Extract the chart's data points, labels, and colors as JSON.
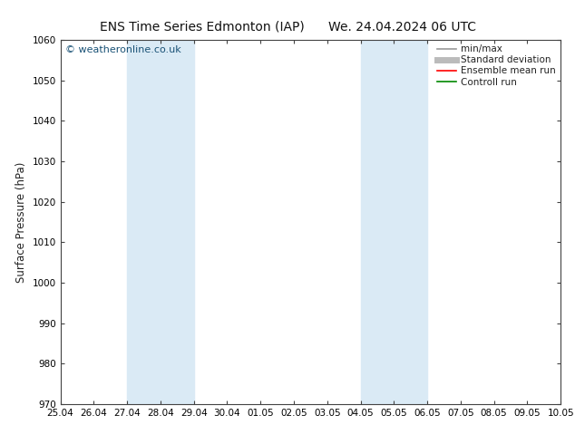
{
  "title_left": "ENS Time Series Edmonton (IAP)",
  "title_right": "We. 24.04.2024 06 UTC",
  "ylabel": "Surface Pressure (hPa)",
  "ylim": [
    970,
    1060
  ],
  "yticks": [
    970,
    980,
    990,
    1000,
    1010,
    1020,
    1030,
    1040,
    1050,
    1060
  ],
  "xtick_labels": [
    "25.04",
    "26.04",
    "27.04",
    "28.04",
    "29.04",
    "30.04",
    "01.05",
    "02.05",
    "03.05",
    "04.05",
    "05.05",
    "06.05",
    "07.05",
    "08.05",
    "09.05",
    "10.05"
  ],
  "xtick_positions": [
    0,
    1,
    2,
    3,
    4,
    5,
    6,
    7,
    8,
    9,
    10,
    11,
    12,
    13,
    14,
    15
  ],
  "shade_regions": [
    {
      "x_start": 2,
      "x_end": 4
    },
    {
      "x_start": 9,
      "x_end": 11
    }
  ],
  "shade_color": "#daeaf5",
  "watermark_text": "© weatheronline.co.uk",
  "watermark_color": "#1a5276",
  "background_color": "#ffffff",
  "legend_items": [
    {
      "label": "min/max",
      "color": "#999999",
      "lw": 1.2,
      "style": "-"
    },
    {
      "label": "Standard deviation",
      "color": "#bbbbbb",
      "lw": 5,
      "style": "-"
    },
    {
      "label": "Ensemble mean run",
      "color": "#ff0000",
      "lw": 1.2,
      "style": "-"
    },
    {
      "label": "Controll run",
      "color": "#008800",
      "lw": 1.2,
      "style": "-"
    }
  ],
  "title_fontsize": 10,
  "tick_fontsize": 7.5,
  "ylabel_fontsize": 8.5,
  "legend_fontsize": 7.5,
  "watermark_fontsize": 8,
  "spine_color": "#444444",
  "tick_color": "#444444"
}
